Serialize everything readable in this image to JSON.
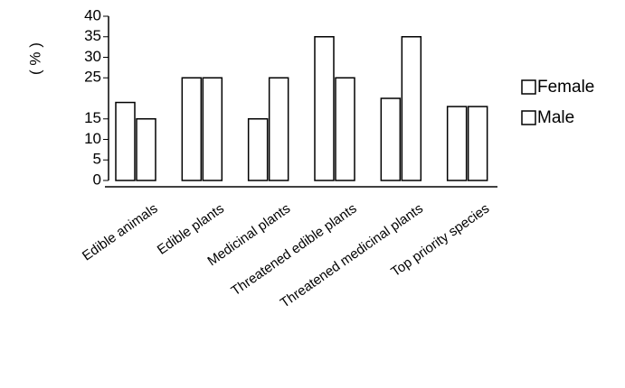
{
  "chart_data": {
    "type": "bar",
    "y_label": "( % )",
    "categories": [
      "Edible animals",
      "Edible plants",
      "Medicinal plants",
      "Threatened edible plants",
      "Threatened medicinal plants",
      "Top priority species"
    ],
    "series": [
      {
        "name": "Female",
        "color": "#ffffff",
        "values": [
          19,
          25,
          15,
          35,
          20,
          18
        ]
      },
      {
        "name": "Male",
        "color": "#ffffff",
        "values": [
          15,
          25,
          25,
          25,
          35,
          18
        ]
      }
    ],
    "ylim": [
      0,
      40
    ],
    "yticks": [
      0,
      5,
      10,
      15,
      25,
      30,
      35,
      40
    ]
  }
}
